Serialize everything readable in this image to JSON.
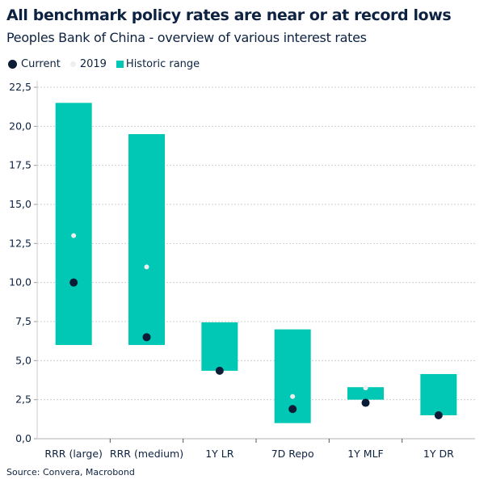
{
  "chart_data": {
    "type": "range-bar-with-markers",
    "title": "All benchmark policy rates are near or at record lows",
    "subtitle": "Peoples Bank of China - overview of various interest rates",
    "source": "Source: Convera, Macrobond",
    "categories": [
      "RRR (large)",
      "RRR (medium)",
      "1Y LR",
      "7D Repo",
      "1Y MLF",
      "1Y DR"
    ],
    "historic_range": {
      "name": "Historic range",
      "low": [
        6.0,
        6.0,
        4.35,
        1.0,
        2.5,
        1.5
      ],
      "high": [
        21.5,
        19.5,
        7.45,
        7.0,
        3.3,
        4.14
      ]
    },
    "current": {
      "name": "Current",
      "values": [
        10.0,
        6.5,
        4.35,
        1.9,
        2.3,
        1.5
      ]
    },
    "y2019": {
      "name": "2019",
      "values": [
        13.0,
        11.0,
        null,
        2.7,
        3.25,
        null
      ]
    },
    "yticks": [
      "0,0",
      "2,5",
      "5,0",
      "7,5",
      "10,0",
      "12,5",
      "15,0",
      "17,5",
      "20,0",
      "22,5"
    ],
    "ylim": [
      0,
      22.5
    ],
    "grid": true,
    "legend_position": "top-left",
    "colors": {
      "range": "#00c8b4",
      "current": "#0b1c36",
      "y2019": "#eeeeee",
      "text": "#0d2240"
    }
  }
}
